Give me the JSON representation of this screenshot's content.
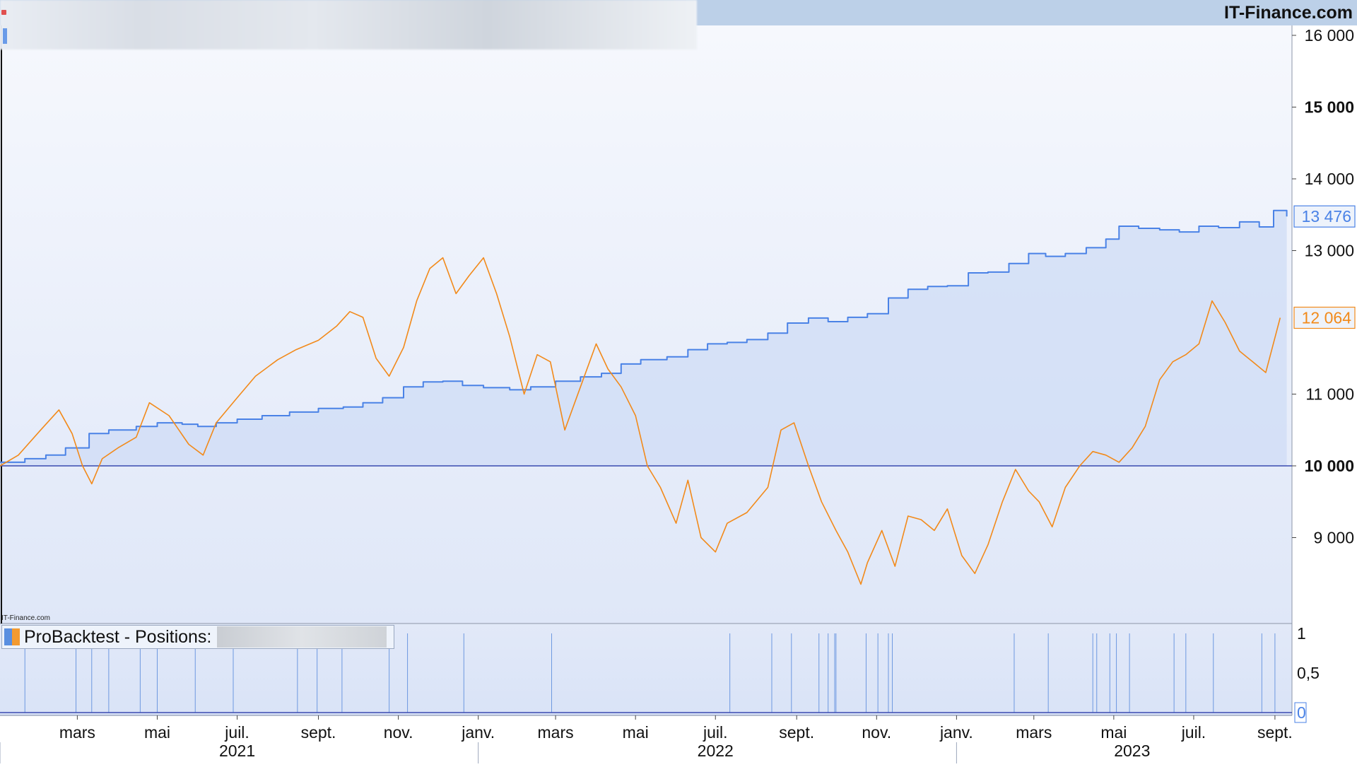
{
  "header": {
    "brand": "IT-Finance.com",
    "watermark": "IT-Finance.com"
  },
  "positions_panel": {
    "label": "ProBacktest - Positions:",
    "ticks": [
      "1",
      "0,5",
      "0"
    ],
    "current_value": "0"
  },
  "colors": {
    "equity": "#4a82e6",
    "benchmark": "#f28a1a",
    "baseline": "#3a4bb0",
    "equity_fill": "#cfdcf6",
    "position_line": "#6d98e0"
  },
  "chart_data": [
    {
      "type": "line",
      "ylim": [
        8000,
        16000
      ],
      "yticks": [
        {
          "value": 16000,
          "label": "16 000",
          "bold": false
        },
        {
          "value": 15000,
          "label": "15 000",
          "bold": true
        },
        {
          "value": 14000,
          "label": "14 000",
          "bold": false
        },
        {
          "value": 13000,
          "label": "13 000",
          "bold": false
        },
        {
          "value": 11000,
          "label": "11 000",
          "bold": false
        },
        {
          "value": 10000,
          "label": "10 000",
          "bold": true
        },
        {
          "value": 9000,
          "label": "9 000",
          "bold": false
        }
      ],
      "baseline": 10000,
      "xlim": [
        "2021-01-01",
        "2023-09-14"
      ],
      "month_ticks": [
        {
          "date": "2021-03-01",
          "label": "mars"
        },
        {
          "date": "2021-05-01",
          "label": "mai"
        },
        {
          "date": "2021-07-01",
          "label": "juil."
        },
        {
          "date": "2021-09-01",
          "label": "sept."
        },
        {
          "date": "2021-11-01",
          "label": "nov."
        },
        {
          "date": "2022-01-01",
          "label": "janv."
        },
        {
          "date": "2022-03-01",
          "label": "mars"
        },
        {
          "date": "2022-05-01",
          "label": "mai"
        },
        {
          "date": "2022-07-01",
          "label": "juil."
        },
        {
          "date": "2022-09-01",
          "label": "sept."
        },
        {
          "date": "2022-11-01",
          "label": "nov."
        },
        {
          "date": "2023-01-01",
          "label": "janv."
        },
        {
          "date": "2023-03-01",
          "label": "mars"
        },
        {
          "date": "2023-05-01",
          "label": "mai"
        },
        {
          "date": "2023-07-01",
          "label": "juil."
        },
        {
          "date": "2023-09-01",
          "label": "sept."
        }
      ],
      "year_ticks": [
        {
          "date": "2021-07-01",
          "label": "2021",
          "divider": "2021-01-01"
        },
        {
          "date": "2022-07-01",
          "label": "2022",
          "divider": "2022-01-01"
        },
        {
          "date": "2023-05-15",
          "label": "2023",
          "divider": "2023-01-01"
        }
      ],
      "series": [
        {
          "key": "equity",
          "last_label": "13 476",
          "last_value": 13476,
          "points": [
            [
              "2021-01-01",
              10050
            ],
            [
              "2021-01-20",
              10100
            ],
            [
              "2021-02-05",
              10150
            ],
            [
              "2021-02-20",
              10250
            ],
            [
              "2021-03-10",
              10450
            ],
            [
              "2021-03-25",
              10500
            ],
            [
              "2021-04-15",
              10550
            ],
            [
              "2021-05-01",
              10600
            ],
            [
              "2021-05-20",
              10580
            ],
            [
              "2021-06-01",
              10550
            ],
            [
              "2021-06-15",
              10600
            ],
            [
              "2021-07-01",
              10650
            ],
            [
              "2021-07-20",
              10700
            ],
            [
              "2021-08-10",
              10750
            ],
            [
              "2021-09-01",
              10800
            ],
            [
              "2021-09-20",
              10820
            ],
            [
              "2021-10-05",
              10880
            ],
            [
              "2021-10-20",
              10950
            ],
            [
              "2021-11-05",
              11100
            ],
            [
              "2021-11-20",
              11170
            ],
            [
              "2021-12-05",
              11180
            ],
            [
              "2021-12-20",
              11120
            ],
            [
              "2022-01-05",
              11090
            ],
            [
              "2022-01-25",
              11060
            ],
            [
              "2022-02-10",
              11100
            ],
            [
              "2022-03-01",
              11180
            ],
            [
              "2022-03-20",
              11240
            ],
            [
              "2022-04-05",
              11290
            ],
            [
              "2022-04-20",
              11420
            ],
            [
              "2022-05-05",
              11480
            ],
            [
              "2022-05-25",
              11520
            ],
            [
              "2022-06-10",
              11620
            ],
            [
              "2022-06-25",
              11700
            ],
            [
              "2022-07-10",
              11720
            ],
            [
              "2022-07-25",
              11760
            ],
            [
              "2022-08-10",
              11850
            ],
            [
              "2022-08-25",
              11990
            ],
            [
              "2022-09-10",
              12060
            ],
            [
              "2022-09-25",
              12010
            ],
            [
              "2022-10-10",
              12070
            ],
            [
              "2022-10-25",
              12120
            ],
            [
              "2022-11-10",
              12340
            ],
            [
              "2022-11-25",
              12460
            ],
            [
              "2022-12-10",
              12500
            ],
            [
              "2022-12-25",
              12510
            ],
            [
              "2023-01-10",
              12690
            ],
            [
              "2023-01-25",
              12700
            ],
            [
              "2023-02-10",
              12820
            ],
            [
              "2023-02-25",
              12960
            ],
            [
              "2023-03-10",
              12920
            ],
            [
              "2023-03-25",
              12960
            ],
            [
              "2023-04-10",
              13040
            ],
            [
              "2023-04-25",
              13160
            ],
            [
              "2023-05-05",
              13340
            ],
            [
              "2023-05-20",
              13310
            ],
            [
              "2023-06-05",
              13290
            ],
            [
              "2023-06-20",
              13260
            ],
            [
              "2023-07-05",
              13340
            ],
            [
              "2023-07-20",
              13320
            ],
            [
              "2023-08-05",
              13400
            ],
            [
              "2023-08-20",
              13330
            ],
            [
              "2023-08-31",
              13560
            ],
            [
              "2023-09-10",
              13476
            ]
          ]
        },
        {
          "key": "benchmark",
          "last_label": "12 064",
          "last_value": 12064,
          "points": [
            [
              "2021-01-01",
              10000
            ],
            [
              "2021-01-15",
              10150
            ],
            [
              "2021-02-01",
              10500
            ],
            [
              "2021-02-15",
              10780
            ],
            [
              "2021-02-25",
              10450
            ],
            [
              "2021-03-05",
              10000
            ],
            [
              "2021-03-12",
              9750
            ],
            [
              "2021-03-20",
              10100
            ],
            [
              "2021-04-01",
              10250
            ],
            [
              "2021-04-15",
              10400
            ],
            [
              "2021-04-25",
              10880
            ],
            [
              "2021-05-10",
              10700
            ],
            [
              "2021-05-25",
              10300
            ],
            [
              "2021-06-05",
              10150
            ],
            [
              "2021-06-15",
              10600
            ],
            [
              "2021-07-01",
              10950
            ],
            [
              "2021-07-15",
              11250
            ],
            [
              "2021-08-01",
              11480
            ],
            [
              "2021-08-15",
              11620
            ],
            [
              "2021-09-01",
              11750
            ],
            [
              "2021-09-15",
              11950
            ],
            [
              "2021-09-25",
              12150
            ],
            [
              "2021-10-05",
              12070
            ],
            [
              "2021-10-15",
              11500
            ],
            [
              "2021-10-25",
              11250
            ],
            [
              "2021-11-05",
              11650
            ],
            [
              "2021-11-15",
              12300
            ],
            [
              "2021-11-25",
              12750
            ],
            [
              "2021-12-05",
              12900
            ],
            [
              "2021-12-15",
              12400
            ],
            [
              "2021-12-25",
              12650
            ],
            [
              "2022-01-05",
              12900
            ],
            [
              "2022-01-15",
              12400
            ],
            [
              "2022-01-25",
              11800
            ],
            [
              "2022-02-05",
              11000
            ],
            [
              "2022-02-15",
              11550
            ],
            [
              "2022-02-25",
              11450
            ],
            [
              "2022-03-08",
              10500
            ],
            [
              "2022-03-20",
              11100
            ],
            [
              "2022-04-01",
              11700
            ],
            [
              "2022-04-10",
              11350
            ],
            [
              "2022-04-20",
              11100
            ],
            [
              "2022-05-01",
              10700
            ],
            [
              "2022-05-10",
              10000
            ],
            [
              "2022-05-20",
              9700
            ],
            [
              "2022-06-01",
              9200
            ],
            [
              "2022-06-10",
              9800
            ],
            [
              "2022-06-20",
              9000
            ],
            [
              "2022-07-01",
              8800
            ],
            [
              "2022-07-10",
              9200
            ],
            [
              "2022-07-25",
              9350
            ],
            [
              "2022-08-10",
              9700
            ],
            [
              "2022-08-20",
              10500
            ],
            [
              "2022-08-30",
              10600
            ],
            [
              "2022-09-10",
              10000
            ],
            [
              "2022-09-20",
              9500
            ],
            [
              "2022-10-01",
              9100
            ],
            [
              "2022-10-10",
              8800
            ],
            [
              "2022-10-20",
              8350
            ],
            [
              "2022-10-25",
              8650
            ],
            [
              "2022-11-05",
              9100
            ],
            [
              "2022-11-15",
              8600
            ],
            [
              "2022-11-25",
              9300
            ],
            [
              "2022-12-05",
              9250
            ],
            [
              "2022-12-15",
              9100
            ],
            [
              "2022-12-25",
              9400
            ],
            [
              "2023-01-05",
              8750
            ],
            [
              "2023-01-15",
              8500
            ],
            [
              "2023-01-25",
              8900
            ],
            [
              "2023-02-05",
              9500
            ],
            [
              "2023-02-15",
              9950
            ],
            [
              "2023-02-25",
              9650
            ],
            [
              "2023-03-05",
              9500
            ],
            [
              "2023-03-15",
              9150
            ],
            [
              "2023-03-25",
              9700
            ],
            [
              "2023-04-05",
              10000
            ],
            [
              "2023-04-15",
              10200
            ],
            [
              "2023-04-25",
              10150
            ],
            [
              "2023-05-05",
              10050
            ],
            [
              "2023-05-15",
              10250
            ],
            [
              "2023-05-25",
              10550
            ],
            [
              "2023-06-05",
              11200
            ],
            [
              "2023-06-15",
              11450
            ],
            [
              "2023-06-25",
              11550
            ],
            [
              "2023-07-05",
              11700
            ],
            [
              "2023-07-15",
              12300
            ],
            [
              "2023-07-25",
              12000
            ],
            [
              "2023-08-05",
              11600
            ],
            [
              "2023-08-15",
              11450
            ],
            [
              "2023-08-25",
              11300
            ],
            [
              "2023-09-05",
              12064
            ]
          ]
        }
      ]
    },
    {
      "type": "bar",
      "ylim": [
        0,
        1
      ],
      "yticks": [
        {
          "value": 1,
          "label": "1"
        },
        {
          "value": 0.5,
          "label": "0,5"
        },
        {
          "value": 0,
          "label": "0"
        }
      ],
      "position_entry_dates": [
        "2021-01-20",
        "2021-02-28",
        "2021-03-12",
        "2021-03-25",
        "2021-04-18",
        "2021-05-01",
        "2021-05-30",
        "2021-06-28",
        "2021-08-16",
        "2021-08-31",
        "2021-09-19",
        "2021-10-25",
        "2021-11-08",
        "2021-12-21",
        "2022-02-26",
        "2022-07-12",
        "2022-08-13",
        "2022-08-28",
        "2022-09-18",
        "2022-09-25",
        "2022-09-30",
        "2022-10-01",
        "2022-10-24",
        "2022-11-02",
        "2022-11-10",
        "2022-11-13",
        "2023-02-14",
        "2023-03-12",
        "2023-04-15",
        "2023-04-18",
        "2023-04-28",
        "2023-05-03",
        "2023-05-13",
        "2023-06-16",
        "2023-06-25",
        "2023-07-16",
        "2023-08-22",
        "2023-09-01"
      ]
    }
  ]
}
